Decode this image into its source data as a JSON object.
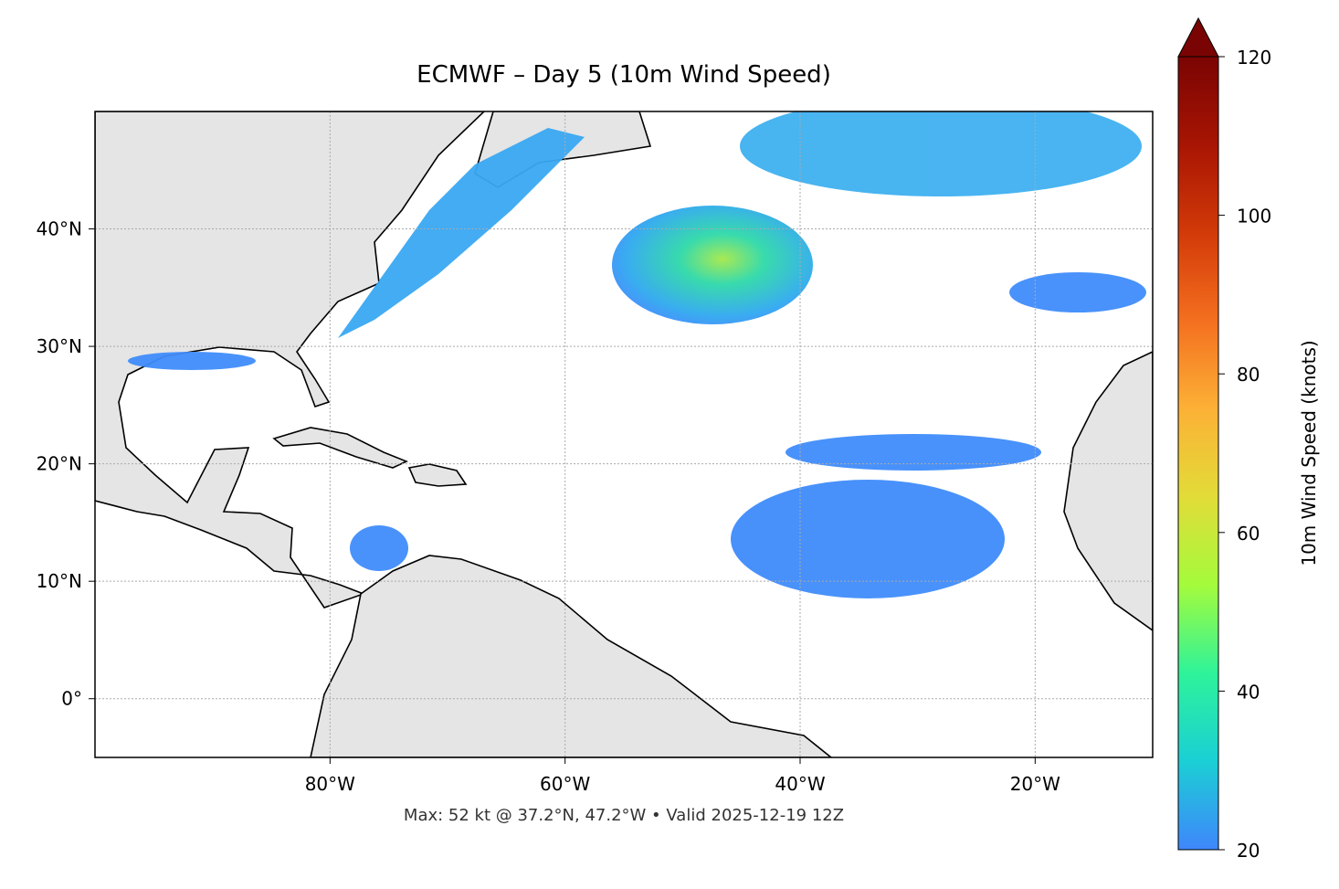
{
  "chart_data": {
    "type": "map",
    "title": "ECMWF – Day 5 (10m Wind Speed)",
    "footer": "Max: 52 kt @ 37.2°N, 47.2°W • Valid 2025-12-19 12Z",
    "xlim": [
      -100,
      -10
    ],
    "ylim": [
      -5,
      50
    ],
    "xticks": [
      {
        "value": -80,
        "label": "80°W"
      },
      {
        "value": -60,
        "label": "60°W"
      },
      {
        "value": -40,
        "label": "40°W"
      },
      {
        "value": -20,
        "label": "20°W"
      }
    ],
    "yticks": [
      {
        "value": 0,
        "label": "0°"
      },
      {
        "value": 10,
        "label": "10°N"
      },
      {
        "value": 20,
        "label": "20°N"
      },
      {
        "value": 30,
        "label": "30°N"
      },
      {
        "value": 40,
        "label": "40°N"
      }
    ],
    "grid": true,
    "colorbar": {
      "label": "10m Wind Speed (knots)",
      "lim": [
        20,
        120
      ],
      "ticks": [
        20,
        40,
        60,
        80,
        100,
        120
      ],
      "colors": [
        "#3f86fb",
        "#1bcfd5",
        "#2ef39a",
        "#a4fb3c",
        "#e2dc38",
        "#fcb136",
        "#f46f1f",
        "#d23a08",
        "#a81503",
        "#7a0403"
      ]
    }
  }
}
